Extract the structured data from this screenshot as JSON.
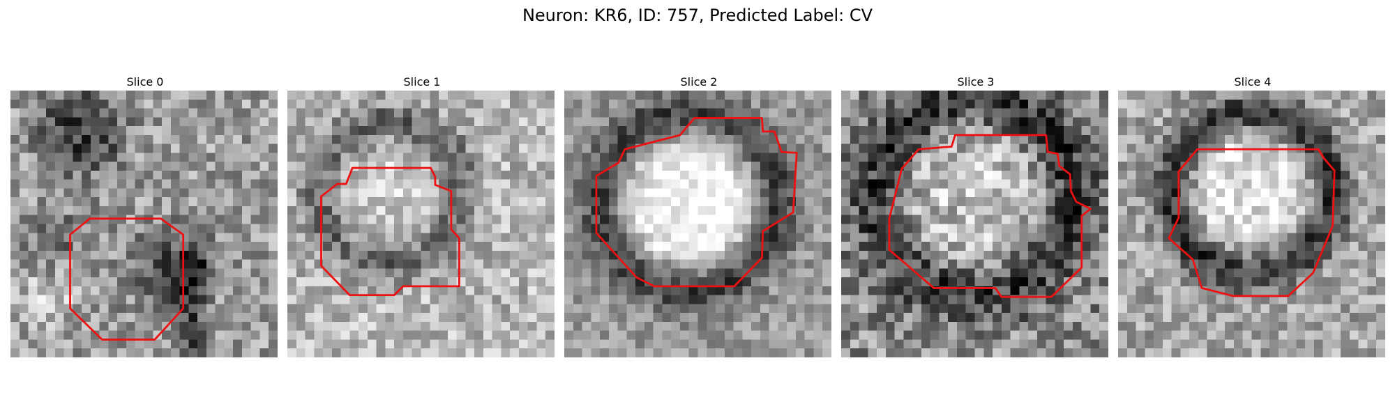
{
  "figure": {
    "title": "Neuron: KR6, ID: 757, Predicted Label: CV"
  },
  "slices": [
    {
      "title": "Slice 0"
    },
    {
      "title": "Slice 1"
    },
    {
      "title": "Slice 2"
    },
    {
      "title": "Slice 3"
    },
    {
      "title": "Slice 4"
    }
  ],
  "colors": {
    "contour": "#ee1111",
    "background": "#ffffff"
  }
}
